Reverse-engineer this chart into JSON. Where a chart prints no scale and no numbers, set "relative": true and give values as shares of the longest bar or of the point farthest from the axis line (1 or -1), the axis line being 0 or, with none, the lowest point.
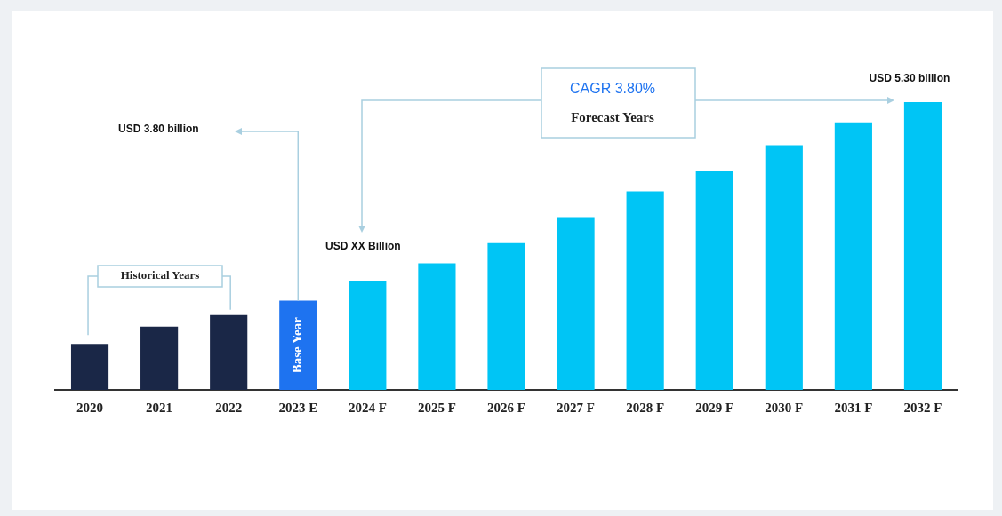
{
  "chart_data": {
    "type": "bar",
    "relative": true,
    "categories": [
      "2020",
      "2021",
      "2022",
      "2023 E",
      "2024 F",
      "2025 F",
      "2026 F",
      "2027 F",
      "2028 F",
      "2029 F",
      "2030 F",
      "2031 F",
      "2032 F"
    ],
    "values": [
      0.16,
      0.22,
      0.26,
      0.31,
      0.38,
      0.44,
      0.51,
      0.6,
      0.69,
      0.76,
      0.85,
      0.93,
      1
    ],
    "colors": [
      "#1a2747",
      "#1a2747",
      "#1a2747",
      "#1e73f0",
      "#00c5f5",
      "#00c5f5",
      "#00c5f5",
      "#00c5f5",
      "#00c5f5",
      "#00c5f5",
      "#00c5f5",
      "#00c5f5",
      "#00c5f5"
    ],
    "annotations": [
      "USD 3.80 billion",
      "USD XX Billion",
      "USD 5.30 billion",
      "CAGR 3.80%",
      "Forecast Years",
      "Historical Years",
      "Base Year"
    ],
    "legend": false,
    "grid": false
  }
}
